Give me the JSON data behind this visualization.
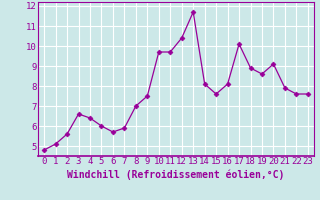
{
  "x": [
    0,
    1,
    2,
    3,
    4,
    5,
    6,
    7,
    8,
    9,
    10,
    11,
    12,
    13,
    14,
    15,
    16,
    17,
    18,
    19,
    20,
    21,
    22,
    23
  ],
  "y": [
    4.8,
    5.1,
    5.6,
    6.6,
    6.4,
    6.0,
    5.7,
    5.9,
    7.0,
    7.5,
    9.7,
    9.7,
    10.4,
    11.7,
    8.1,
    7.6,
    8.1,
    10.1,
    8.9,
    8.6,
    9.1,
    7.9,
    7.6,
    7.6
  ],
  "line_color": "#990099",
  "marker": "D",
  "marker_size": 2.5,
  "bg_color": "#cce8e8",
  "grid_color": "#ffffff",
  "xlabel": "Windchill (Refroidissement éolien,°C)",
  "xlabel_color": "#990099",
  "tick_color": "#990099",
  "ylim": [
    4.5,
    12.2
  ],
  "xlim": [
    -0.5,
    23.5
  ],
  "yticks": [
    5,
    6,
    7,
    8,
    9,
    10,
    11,
    12
  ],
  "xticks": [
    0,
    1,
    2,
    3,
    4,
    5,
    6,
    7,
    8,
    9,
    10,
    11,
    12,
    13,
    14,
    15,
    16,
    17,
    18,
    19,
    20,
    21,
    22,
    23
  ],
  "spine_color": "#990099",
  "font_size": 6.5,
  "xlabel_fontsize": 7,
  "line_width": 0.9
}
